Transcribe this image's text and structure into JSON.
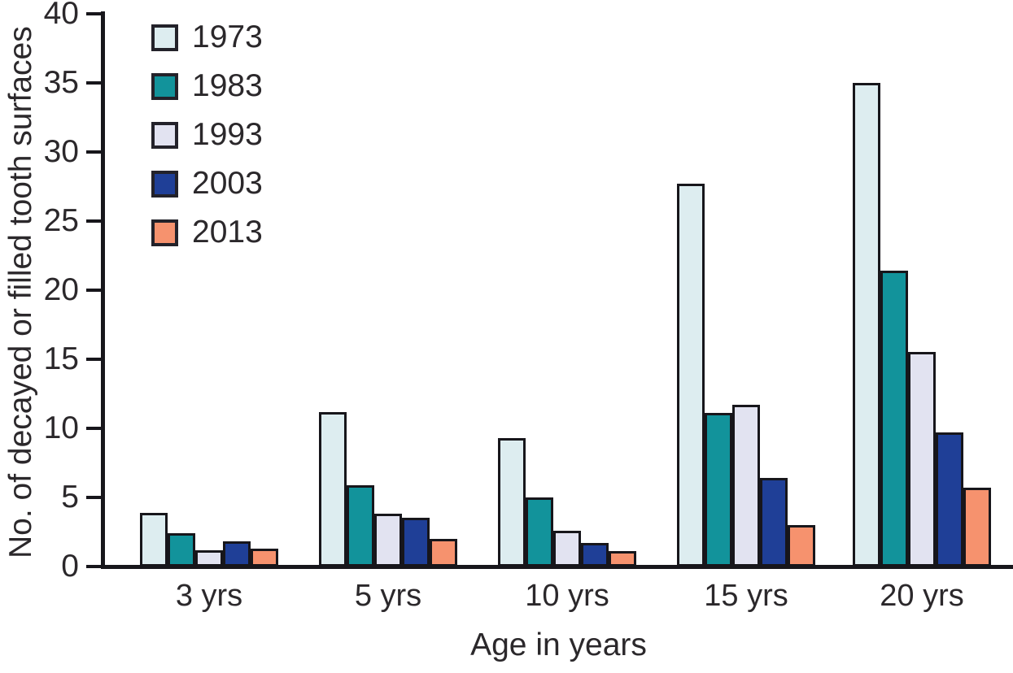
{
  "chart_data": {
    "type": "bar",
    "title": "",
    "xlabel": "Age in years",
    "ylabel": "No. of decayed or filled tooth surfaces",
    "categories": [
      "3 yrs",
      "5 yrs",
      "10 yrs",
      "15 yrs",
      "20 yrs"
    ],
    "series": [
      {
        "name": "1973",
        "color": "#ddedf0",
        "values": [
          3.9,
          11.2,
          9.3,
          27.7,
          35.0
        ]
      },
      {
        "name": "1983",
        "color": "#12939b",
        "values": [
          2.4,
          5.9,
          5.0,
          11.1,
          21.4
        ]
      },
      {
        "name": "1993",
        "color": "#e2e3f1",
        "values": [
          1.2,
          3.8,
          2.6,
          11.7,
          15.5
        ]
      },
      {
        "name": "2003",
        "color": "#1f3f97",
        "values": [
          1.8,
          3.5,
          1.7,
          6.4,
          9.7
        ]
      },
      {
        "name": "2013",
        "color": "#f6926e",
        "values": [
          1.3,
          2.0,
          1.1,
          3.0,
          5.7
        ]
      }
    ],
    "ylim": [
      0,
      40
    ],
    "yticks": [
      0,
      5,
      10,
      15,
      20,
      25,
      30,
      35,
      40
    ],
    "grid": false,
    "legend_position": "top-left",
    "bar_outline_color": "#17161b",
    "axis_color": "#17161b"
  }
}
